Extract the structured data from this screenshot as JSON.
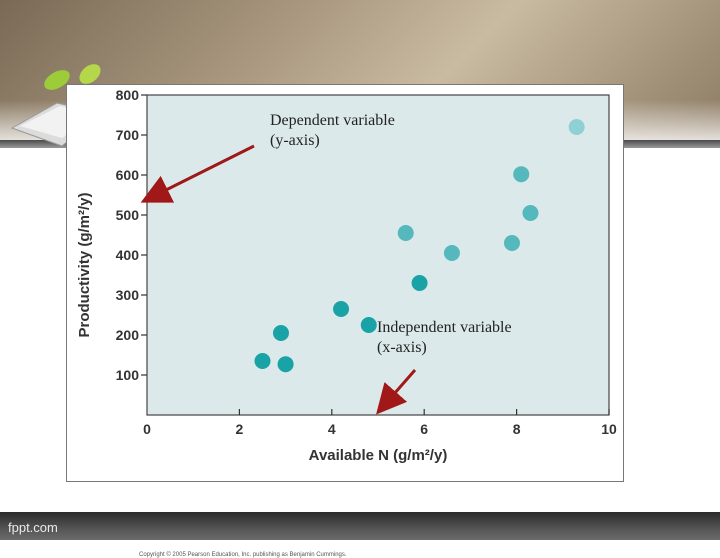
{
  "slide": {
    "brand": "fppt.com",
    "credit": "Copyright © 2005 Pearson Education, Inc. publishing as Benjamin Cummings.",
    "annotations": {
      "dependent": {
        "line1": "Dependent variable",
        "line2": " (y-axis)"
      },
      "independent": {
        "line1": "Independent variable",
        "line2": "(x-axis)"
      }
    },
    "colors": {
      "plot_bg": "#dbe9ea",
      "point_dark": "#1aa3a6",
      "point_mid": "#55b8bd",
      "point_light": "#8fd0d4",
      "arrow": "#a01818"
    }
  },
  "chart_data": {
    "type": "scatter",
    "xlabel": "Available N (g/m²/y)",
    "ylabel": "Productivity (g/m²/y)",
    "xlim": [
      0,
      10
    ],
    "ylim": [
      0,
      800
    ],
    "xticks": [
      "0",
      "2",
      "4",
      "6",
      "8",
      "10"
    ],
    "yticks": [
      "100",
      "200",
      "300",
      "400",
      "500",
      "600",
      "700",
      "800"
    ],
    "grid": false,
    "points": [
      {
        "x": 2.5,
        "y": 135,
        "shade": "dark"
      },
      {
        "x": 2.9,
        "y": 205,
        "shade": "dark"
      },
      {
        "x": 3.0,
        "y": 127,
        "shade": "dark"
      },
      {
        "x": 4.2,
        "y": 265,
        "shade": "dark"
      },
      {
        "x": 4.8,
        "y": 225,
        "shade": "dark"
      },
      {
        "x": 5.6,
        "y": 455,
        "shade": "mid"
      },
      {
        "x": 5.9,
        "y": 330,
        "shade": "dark"
      },
      {
        "x": 6.6,
        "y": 405,
        "shade": "mid"
      },
      {
        "x": 7.9,
        "y": 430,
        "shade": "mid"
      },
      {
        "x": 8.1,
        "y": 602,
        "shade": "mid"
      },
      {
        "x": 8.3,
        "y": 505,
        "shade": "mid"
      },
      {
        "x": 9.3,
        "y": 720,
        "shade": "light"
      }
    ]
  }
}
